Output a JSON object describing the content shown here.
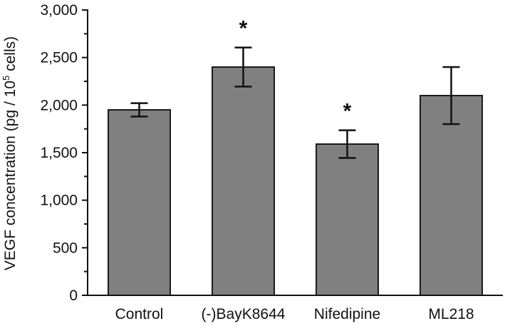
{
  "chart_data": {
    "type": "bar",
    "title": "",
    "xlabel": "",
    "ylabel": "VEGF concentration (pg / 10^5 cells)",
    "ylabel_parts": {
      "pre": "VEGF concentration (pg / 10",
      "sup": "5",
      "post": " cells)"
    },
    "ylim": [
      0,
      3000
    ],
    "yticks": [
      0,
      500,
      1000,
      1500,
      2000,
      2500,
      3000
    ],
    "ytick_labels": [
      "0",
      "500",
      "1,000",
      "1,500",
      "2,000",
      "2,500",
      "3,000"
    ],
    "minor_ticks": true,
    "grid": false,
    "legend": null,
    "categories": [
      "Control",
      "(-)BayK8644",
      "Nifedipine",
      "ML218"
    ],
    "values": [
      1950,
      2400,
      1590,
      2100
    ],
    "errors": [
      70,
      205,
      145,
      300
    ],
    "significance": [
      "",
      "*",
      "*",
      ""
    ],
    "bar_color": "#808080",
    "edge_color": "#1a1a1a"
  }
}
